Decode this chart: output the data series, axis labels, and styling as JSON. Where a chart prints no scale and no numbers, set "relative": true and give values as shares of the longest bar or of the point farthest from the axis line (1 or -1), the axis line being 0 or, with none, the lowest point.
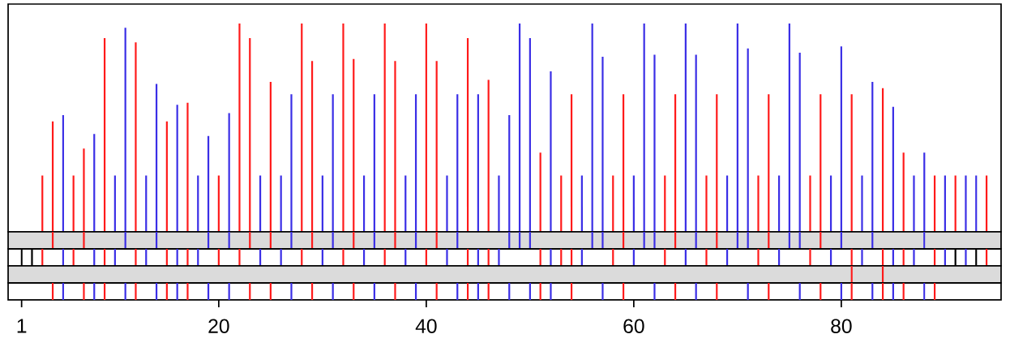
{
  "chart_data": [
    {
      "type": "bar",
      "relative": true,
      "xlim": [
        -0.3,
        95.4
      ],
      "tick_labels": false,
      "series": [
        {
          "color": "#ff1a1a",
          "x": [
            3,
            4,
            6,
            7,
            9,
            12,
            15,
            17,
            20,
            22,
            23,
            25,
            28,
            29,
            32,
            33,
            36,
            37,
            40,
            41,
            44,
            46,
            51,
            53,
            54,
            58,
            59,
            63,
            64,
            67,
            68,
            72,
            73,
            77,
            78,
            81,
            84,
            86,
            89,
            91,
            94
          ],
          "values": [
            0.27,
            0.53,
            0.27,
            0.4,
            0.93,
            0.91,
            0.53,
            0.62,
            0.27,
            1.0,
            0.93,
            0.72,
            1.0,
            0.82,
            1.0,
            0.83,
            1.0,
            0.82,
            1.0,
            0.82,
            0.93,
            0.73,
            0.38,
            0.27,
            0.66,
            0.27,
            0.66,
            0.27,
            0.66,
            0.27,
            0.66,
            0.27,
            0.66,
            0.27,
            0.66,
            0.66,
            0.69,
            0.38,
            0.27,
            0.27,
            0.27
          ]
        },
        {
          "color": "#3a2ee6",
          "x": [
            5,
            8,
            10,
            11,
            13,
            14,
            16,
            18,
            19,
            21,
            24,
            26,
            27,
            30,
            31,
            34,
            35,
            38,
            39,
            42,
            43,
            45,
            47,
            48,
            49,
            50,
            52,
            55,
            56,
            57,
            60,
            61,
            62,
            65,
            66,
            69,
            70,
            71,
            74,
            75,
            76,
            79,
            80,
            82,
            83,
            85,
            87,
            88,
            90,
            92,
            93
          ],
          "values": [
            0.56,
            0.47,
            0.27,
            0.98,
            0.27,
            0.71,
            0.61,
            0.27,
            0.46,
            0.57,
            0.27,
            0.27,
            0.66,
            0.27,
            0.66,
            0.27,
            0.66,
            0.27,
            0.66,
            0.27,
            0.66,
            0.66,
            0.27,
            0.56,
            1.0,
            0.93,
            0.77,
            0.27,
            1.0,
            0.84,
            0.27,
            1.0,
            0.85,
            1.0,
            0.85,
            0.27,
            1.0,
            0.88,
            0.27,
            1.0,
            0.86,
            0.27,
            0.89,
            0.27,
            0.72,
            0.6,
            0.27,
            0.38,
            0.27,
            0.27,
            0.27
          ]
        }
      ]
    },
    {
      "type": "bar",
      "relative": true,
      "xlim": [
        -0.3,
        95.4
      ],
      "tick_labels": false,
      "series": [
        {
          "color": "#ff1a1a",
          "x": [
            4,
            7,
            23,
            25,
            29,
            33,
            37,
            41,
            59,
            64,
            68,
            73,
            78
          ],
          "values": [
            1,
            1,
            1,
            1,
            1,
            1,
            1,
            1,
            1,
            1,
            1,
            1,
            1
          ]
        },
        {
          "color": "#3a2ee6",
          "x": [
            11,
            14,
            19,
            21,
            27,
            31,
            35,
            39,
            43,
            48,
            49,
            50,
            56,
            57,
            61,
            62,
            66,
            70,
            71,
            75,
            76,
            80,
            83,
            88
          ],
          "values": [
            1,
            1,
            1,
            1,
            1,
            1,
            1,
            1,
            1,
            1,
            1,
            1,
            1,
            1,
            1,
            1,
            1,
            1,
            1,
            1,
            1,
            1,
            1,
            1
          ]
        }
      ]
    },
    {
      "type": "bar",
      "relative": true,
      "xlim": [
        -0.3,
        95.4
      ],
      "tick_labels": false,
      "series": [
        {
          "color": "#ff1a1a",
          "x": [
            3,
            6,
            9,
            12,
            15,
            17,
            20,
            22,
            28,
            32,
            36,
            40,
            44,
            46,
            51,
            53,
            54,
            58,
            63,
            67,
            72,
            77,
            81,
            84,
            86,
            89,
            94
          ],
          "values": [
            1,
            1,
            1,
            1,
            1,
            1,
            1,
            1,
            1,
            1,
            1,
            1,
            1,
            1,
            1,
            1,
            1,
            1,
            1,
            1,
            1,
            1,
            1,
            1,
            1,
            1,
            1
          ]
        },
        {
          "color": "#3a2ee6",
          "x": [
            5,
            8,
            10,
            13,
            16,
            18,
            24,
            26,
            30,
            34,
            38,
            42,
            45,
            47,
            52,
            55,
            60,
            65,
            69,
            74,
            79,
            82,
            85,
            87,
            90,
            92
          ],
          "values": [
            1,
            1,
            1,
            1,
            1,
            1,
            1,
            1,
            1,
            1,
            1,
            1,
            1,
            1,
            1,
            1,
            1,
            1,
            1,
            1,
            1,
            1,
            1,
            1,
            1,
            1
          ]
        },
        {
          "color": "#000000",
          "x": [
            1,
            2,
            91,
            93
          ],
          "values": [
            1,
            1,
            1,
            1
          ]
        }
      ]
    },
    {
      "type": "bar",
      "relative": true,
      "xlim": [
        -0.3,
        95.4
      ],
      "tick_labels": false,
      "series": [
        {
          "color": "#ff1a1a",
          "x": [
            81,
            84
          ],
          "values": [
            1,
            1
          ]
        }
      ]
    },
    {
      "type": "bar",
      "relative": true,
      "xlim": [
        -0.3,
        95.4
      ],
      "xticks": [
        1,
        20,
        40,
        60,
        80
      ],
      "tick_labels": "x",
      "series": [
        {
          "color": "#ff1a1a",
          "x": [
            4,
            7,
            9,
            12,
            15,
            17,
            23,
            25,
            29,
            33,
            37,
            41,
            44,
            46,
            51,
            54,
            59,
            64,
            68,
            73,
            78,
            81,
            84,
            86,
            89
          ],
          "values": [
            1,
            1,
            1,
            1,
            1,
            1,
            1,
            1,
            1,
            1,
            1,
            1,
            1,
            1,
            1,
            1,
            1,
            1,
            1,
            1,
            1,
            1,
            1,
            1,
            1
          ]
        },
        {
          "color": "#3a2ee6",
          "x": [
            5,
            8,
            11,
            14,
            16,
            19,
            21,
            27,
            31,
            35,
            39,
            43,
            45,
            48,
            50,
            52,
            57,
            62,
            66,
            71,
            76,
            80,
            83,
            85,
            88
          ],
          "values": [
            1,
            1,
            1,
            1,
            1,
            1,
            1,
            1,
            1,
            1,
            1,
            1,
            1,
            1,
            1,
            1,
            1,
            1,
            1,
            1,
            1,
            1,
            1,
            1,
            1
          ]
        }
      ]
    }
  ]
}
